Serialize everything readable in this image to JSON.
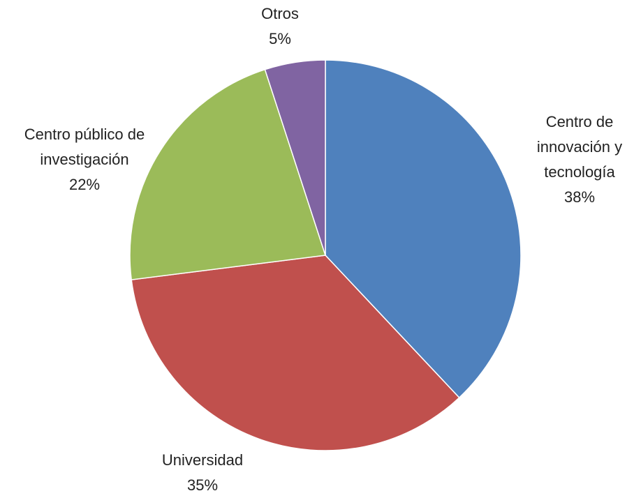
{
  "chart_data": {
    "type": "pie",
    "categories": [
      "Centro de innovación y tecnología",
      "Universidad",
      "Centro público de investigación",
      "Otros"
    ],
    "values": [
      38,
      35,
      22,
      5
    ],
    "value_labels": [
      "38%",
      "35%",
      "22%",
      "5%"
    ],
    "colors": [
      "#4f81bd",
      "#c0504d",
      "#9bbb59",
      "#8064a2"
    ]
  }
}
